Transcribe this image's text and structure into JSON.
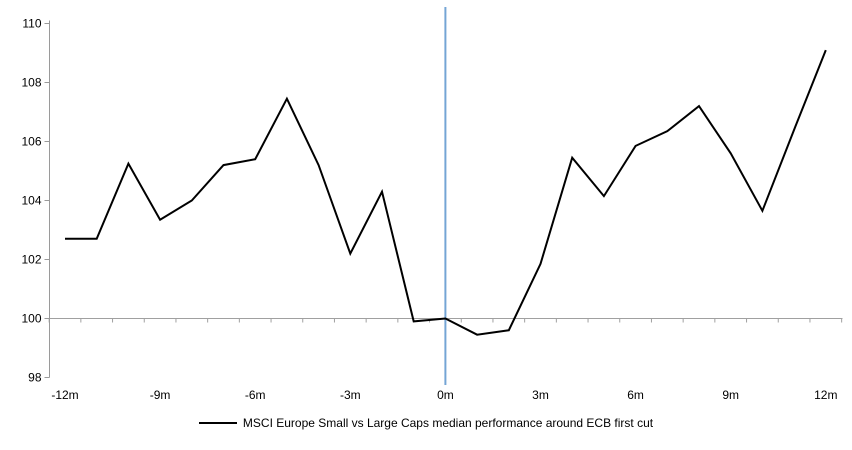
{
  "chart_data": {
    "type": "line",
    "title": "",
    "legend": "MSCI Europe Small vs Large Caps median performance around ECB first cut",
    "xlabel": "",
    "ylabel": "",
    "x_unit": "months relative to ECB first cut",
    "series": [
      {
        "name": "MSCI Europe Small vs Large Caps median performance around ECB first cut",
        "x": [
          -12,
          -11,
          -10,
          -9,
          -8,
          -7,
          -6,
          -5,
          -4,
          -3,
          -2,
          -1,
          0,
          1,
          2,
          3,
          4,
          5,
          6,
          7,
          8,
          9,
          10,
          11,
          12
        ],
        "values": [
          102.7,
          102.7,
          105.25,
          103.35,
          104.0,
          105.2,
          105.4,
          107.45,
          105.2,
          102.2,
          104.3,
          99.9,
          100.0,
          99.45,
          99.6,
          101.85,
          105.45,
          104.15,
          105.85,
          106.35,
          107.2,
          105.6,
          103.65,
          106.4,
          109.1
        ]
      }
    ],
    "x_tick_labels": [
      {
        "label": "-12m",
        "x": -12
      },
      {
        "label": "-9m",
        "x": -9
      },
      {
        "label": "-6m",
        "x": -6
      },
      {
        "label": "-3m",
        "x": -3
      },
      {
        "label": "0m",
        "x": 0
      },
      {
        "label": "3m",
        "x": 3
      },
      {
        "label": "6m",
        "x": 6
      },
      {
        "label": "9m",
        "x": 9
      },
      {
        "label": "12m",
        "x": 12
      }
    ],
    "y_ticks": [
      110,
      108,
      106,
      104,
      102,
      100,
      98
    ],
    "ylim": [
      98,
      110
    ],
    "xlim": [
      -12.5,
      12.5
    ],
    "baseline_y": 100,
    "event_line": {
      "x": 0
    },
    "grid": "single horizontal baseline at 100 with minor category ticks",
    "legend_position": "bottom-center",
    "colors": {
      "series": "#000000",
      "event_line": "#74A5D5",
      "gridline": "#A0A0A0",
      "axis": "#9A9A9A",
      "text": "#000000",
      "background": "#FFFFFF"
    }
  }
}
